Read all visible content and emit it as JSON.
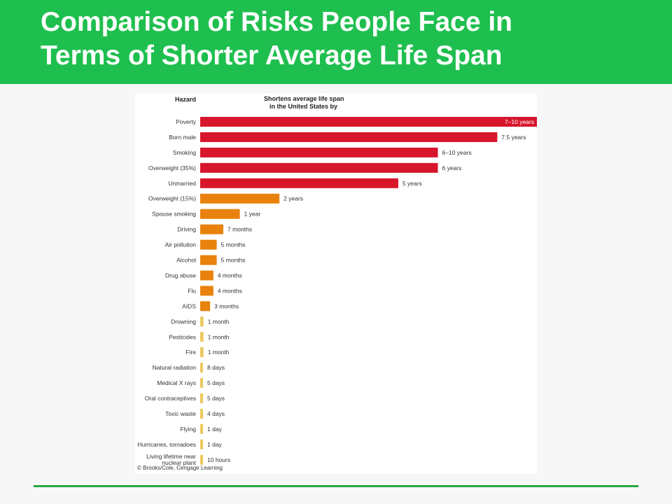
{
  "slide": {
    "title_line1": "Comparison of Risks People Face in",
    "title_line2": "Terms of Shorter Average Life Span"
  },
  "chart_data": {
    "type": "bar",
    "orientation": "horizontal",
    "column_header_left": "Hazard",
    "column_header_right_line1": "Shortens average life span",
    "column_header_right_line2": "in the United States by",
    "credit": "© Brooks/Cole, Cengage Learning",
    "x_unit": "years",
    "xlim": [
      0,
      8.5
    ],
    "grid": false,
    "legend": "none",
    "colors": {
      "high": "#d7152b",
      "medium": "#e8820c",
      "low": "#ecc95c"
    },
    "items": [
      {
        "hazard": "Poverty",
        "label": "7–10 years",
        "value": 8.5,
        "tier": "high",
        "label_inside": true
      },
      {
        "hazard": "Born male",
        "label": "7.5 years",
        "value": 7.5,
        "tier": "high"
      },
      {
        "hazard": "Smoking",
        "label": "6–10 years",
        "value": 6.0,
        "tier": "high"
      },
      {
        "hazard": "Overweight (35%)",
        "label": "6 years",
        "value": 6.0,
        "tier": "high"
      },
      {
        "hazard": "Unmarried",
        "label": "5 years",
        "value": 5.0,
        "tier": "high"
      },
      {
        "hazard": "Overweight (15%)",
        "label": "2 years",
        "value": 2.0,
        "tier": "medium"
      },
      {
        "hazard": "Spouse smoking",
        "label": "1 year",
        "value": 1.0,
        "tier": "medium"
      },
      {
        "hazard": "Driving",
        "label": "7 months",
        "value": 0.583,
        "tier": "medium"
      },
      {
        "hazard": "Air pollution",
        "label": "5 months",
        "value": 0.417,
        "tier": "medium"
      },
      {
        "hazard": "Alcohol",
        "label": "5 months",
        "value": 0.417,
        "tier": "medium"
      },
      {
        "hazard": "Drug abuse",
        "label": "4 months",
        "value": 0.333,
        "tier": "medium"
      },
      {
        "hazard": "Flu",
        "label": "4 months",
        "value": 0.333,
        "tier": "medium"
      },
      {
        "hazard": "AIDS",
        "label": "3 months",
        "value": 0.25,
        "tier": "medium"
      },
      {
        "hazard": "Drowning",
        "label": "1 month",
        "value": 0.083,
        "tier": "low"
      },
      {
        "hazard": "Pesticides",
        "label": "1 month",
        "value": 0.083,
        "tier": "low"
      },
      {
        "hazard": "Fire",
        "label": "1 month",
        "value": 0.083,
        "tier": "low"
      },
      {
        "hazard": "Natural radiation",
        "label": "8 days",
        "value": 0.022,
        "tier": "low"
      },
      {
        "hazard": "Medical X rays",
        "label": "5 days",
        "value": 0.014,
        "tier": "low"
      },
      {
        "hazard": "Oral contraceptives",
        "label": "5 days",
        "value": 0.014,
        "tier": "low"
      },
      {
        "hazard": "Toxic waste",
        "label": "4 days",
        "value": 0.011,
        "tier": "low"
      },
      {
        "hazard": "Flying",
        "label": "1 day",
        "value": 0.003,
        "tier": "low"
      },
      {
        "hazard": "Hurricanes, tornadoes",
        "label": "1 day",
        "value": 0.003,
        "tier": "low"
      },
      {
        "hazard": "Living lifetime near|nuclear plant",
        "label": "10 hours",
        "value": 0.001,
        "tier": "low"
      }
    ]
  }
}
